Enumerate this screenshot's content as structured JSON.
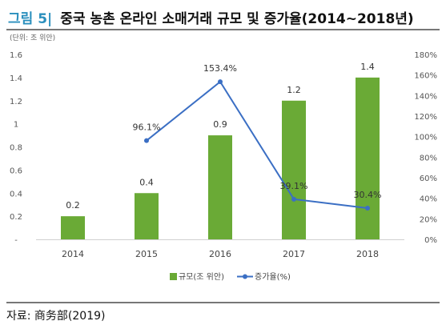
{
  "header": {
    "figure_label": "그림 5|",
    "title": "중국 농촌 온라인 소매거래 규모 및 증가율(2014~2018년)",
    "unit": "(단위: 조 위안)"
  },
  "source": "자료: 商务部(2019)",
  "colors": {
    "bar": "#6aaa36",
    "line": "#3b6fc4",
    "label_blue": "#2a8fbd"
  },
  "chart_data": {
    "type": "bar",
    "categories": [
      "2014",
      "2015",
      "2016",
      "2017",
      "2018"
    ],
    "series": [
      {
        "name": "규모(조 위안)",
        "type": "bar",
        "axis": "left",
        "values": [
          0.2,
          0.4,
          0.9,
          1.2,
          1.4
        ],
        "labels": [
          "0.2",
          "0.4",
          "0.9",
          "1.2",
          "1.4"
        ]
      },
      {
        "name": "증가율(%)",
        "type": "line",
        "axis": "right",
        "values": [
          null,
          96.1,
          153.4,
          39.1,
          30.4
        ],
        "labels": [
          "",
          "96.1%",
          "153.4%",
          "39.1%",
          "30.4%"
        ]
      }
    ],
    "y_left": {
      "ylim": [
        0,
        1.6
      ],
      "ticks": [
        "-",
        "0.2",
        "0.4",
        "0.6",
        "0.8",
        "1",
        "1.2",
        "1.4",
        "1.6"
      ]
    },
    "y_right": {
      "ylim": [
        0,
        180
      ],
      "ticks": [
        "0%",
        "20%",
        "40%",
        "60%",
        "80%",
        "100%",
        "120%",
        "140%",
        "160%",
        "180%"
      ]
    },
    "grid": false,
    "legend": "bottom"
  }
}
